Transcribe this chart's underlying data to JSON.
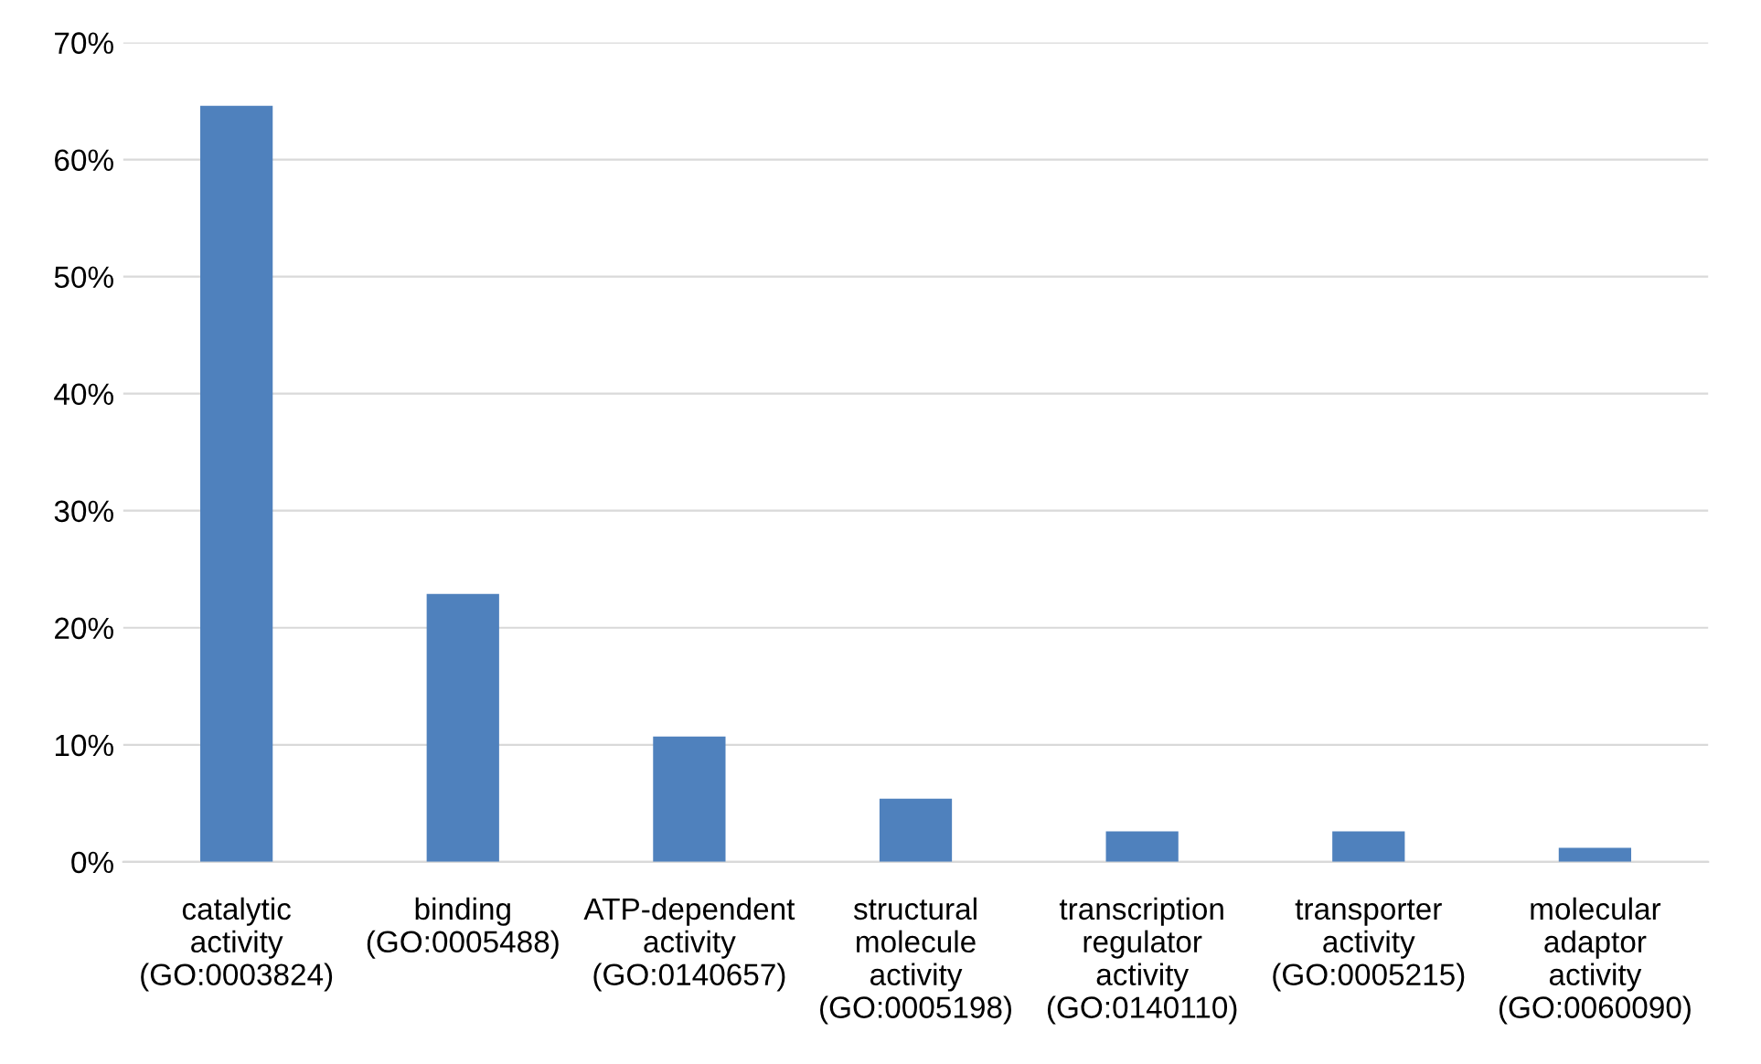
{
  "chart_data": {
    "type": "bar",
    "categories": [
      "catalytic\nactivity\n(GO:0003824)",
      "binding\n(GO:0005488)",
      "ATP-dependent\nactivity\n(GO:0140657)",
      "structural\nmolecule\nactivity\n(GO:0005198)",
      "transcription\nregulator\nactivity\n(GO:0140110)",
      "transporter\nactivity\n(GO:0005215)",
      "molecular\nadaptor\nactivity\n(GO:0060090)"
    ],
    "values": [
      64.6,
      22.9,
      10.7,
      5.4,
      2.6,
      2.6,
      1.2
    ],
    "color": "#4f81bd",
    "ylim": [
      0,
      70
    ],
    "yticks": [
      {
        "value": 0,
        "label": "0%"
      },
      {
        "value": 10,
        "label": "10%"
      },
      {
        "value": 20,
        "label": "20%"
      },
      {
        "value": 30,
        "label": "30%"
      },
      {
        "value": 40,
        "label": "40%"
      },
      {
        "value": 50,
        "label": "50%"
      },
      {
        "value": 60,
        "label": "60%"
      },
      {
        "value": 70,
        "label": "70%"
      }
    ],
    "grid": "y"
  }
}
